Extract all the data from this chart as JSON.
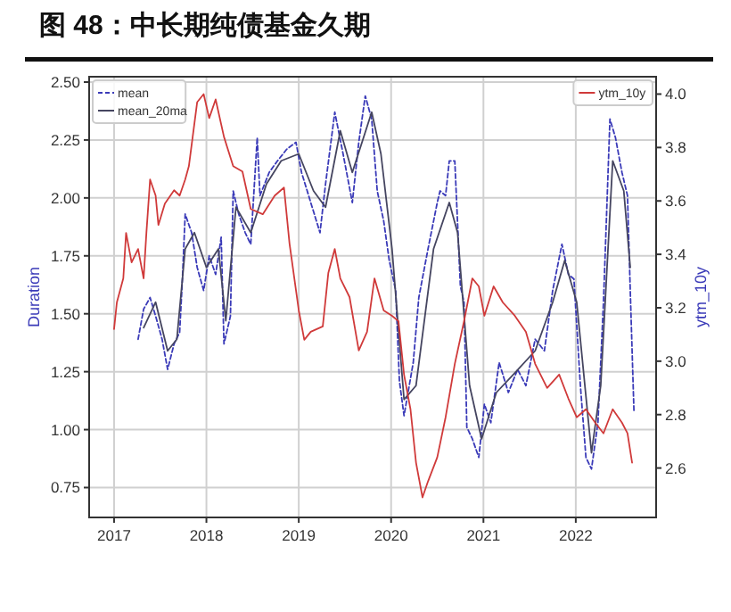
{
  "chart_data": {
    "type": "line",
    "title": "图 48：中长期纯债基金久期",
    "ylabel": "Duration",
    "y2label": "ytm_10y",
    "xlim": [
      2016.73,
      2022.87
    ],
    "xticks": [
      2017,
      2018,
      2019,
      2020,
      2021,
      2022
    ],
    "ylim": [
      0.621,
      2.523
    ],
    "yticks": [
      {
        "value": 0.75,
        "label": "0.75"
      },
      {
        "value": 1.0,
        "label": "1.00"
      },
      {
        "value": 1.25,
        "label": "1.25"
      },
      {
        "value": 1.5,
        "label": "1.50"
      },
      {
        "value": 1.75,
        "label": "1.75"
      },
      {
        "value": 2.0,
        "label": "2.00"
      },
      {
        "value": 2.25,
        "label": "2.25"
      },
      {
        "value": 2.5,
        "label": "2.50"
      }
    ],
    "y2lim": [
      2.415,
      4.065
    ],
    "y2ticks": [
      {
        "value": 2.6,
        "label": "2.6"
      },
      {
        "value": 2.8,
        "label": "2.8"
      },
      {
        "value": 3.0,
        "label": "3.0"
      },
      {
        "value": 3.2,
        "label": "3.2"
      },
      {
        "value": 3.4,
        "label": "3.4"
      },
      {
        "value": 3.6,
        "label": "3.6"
      },
      {
        "value": 3.8,
        "label": "3.8"
      },
      {
        "value": 4.0,
        "label": "4.0"
      }
    ],
    "grid": true,
    "legend": "top left",
    "series": [
      {
        "name": "mean",
        "color": "#3a3ab8",
        "line_style": "dashed",
        "x": [
          2017.26,
          2017.32,
          2017.39,
          2017.45,
          2017.52,
          2017.58,
          2017.65,
          2017.71,
          2017.74,
          2017.77,
          2017.84,
          2017.9,
          2017.97,
          2018.03,
          2018.1,
          2018.16,
          2018.19,
          2018.26,
          2018.29,
          2018.35,
          2018.42,
          2018.48,
          2018.55,
          2018.58,
          2018.68,
          2018.77,
          2018.87,
          2018.97,
          2019.03,
          2019.13,
          2019.23,
          2019.29,
          2019.39,
          2019.48,
          2019.58,
          2019.65,
          2019.72,
          2019.79,
          2019.85,
          2019.92,
          2019.98,
          2020.05,
          2020.09,
          2020.14,
          2020.24,
          2020.3,
          2020.4,
          2020.5,
          2020.53,
          2020.59,
          2020.63,
          2020.69,
          2020.75,
          2020.79,
          2020.82,
          2020.88,
          2020.95,
          2021.01,
          2021.08,
          2021.17,
          2021.27,
          2021.37,
          2021.46,
          2021.56,
          2021.66,
          2021.75,
          2021.85,
          2021.92,
          2021.98,
          2022.05,
          2022.11,
          2022.17,
          2022.24,
          2022.3,
          2022.37,
          2022.43,
          2022.5,
          2022.56,
          2022.59,
          2022.63
        ],
        "values": [
          1.39,
          1.52,
          1.57,
          1.49,
          1.39,
          1.26,
          1.37,
          1.42,
          1.65,
          1.93,
          1.85,
          1.7,
          1.6,
          1.75,
          1.67,
          1.83,
          1.37,
          1.49,
          2.03,
          1.93,
          1.85,
          1.8,
          2.26,
          2.01,
          2.11,
          2.16,
          2.21,
          2.24,
          2.11,
          1.98,
          1.85,
          2.06,
          2.37,
          2.19,
          1.98,
          2.24,
          2.44,
          2.34,
          2.03,
          1.9,
          1.73,
          1.6,
          1.21,
          1.06,
          1.29,
          1.57,
          1.78,
          1.98,
          2.03,
          2.01,
          2.16,
          2.16,
          1.62,
          1.55,
          1.01,
          0.96,
          0.88,
          1.11,
          1.03,
          1.29,
          1.16,
          1.26,
          1.19,
          1.39,
          1.34,
          1.6,
          1.8,
          1.67,
          1.65,
          1.19,
          0.88,
          0.83,
          1.03,
          1.55,
          2.34,
          2.26,
          2.11,
          2.01,
          1.6,
          1.08
        ]
      },
      {
        "name": "mean_20ma",
        "color": "#454560",
        "line_style": "solid",
        "x": [
          2017.32,
          2017.45,
          2017.58,
          2017.68,
          2017.77,
          2017.87,
          2018.0,
          2018.13,
          2018.21,
          2018.32,
          2018.48,
          2018.65,
          2018.81,
          2019.0,
          2019.16,
          2019.29,
          2019.45,
          2019.58,
          2019.79,
          2019.89,
          2020.01,
          2020.14,
          2020.27,
          2020.46,
          2020.63,
          2020.72,
          2020.85,
          2020.98,
          2021.14,
          2021.33,
          2021.56,
          2021.75,
          2021.88,
          2022.01,
          2022.17,
          2022.27,
          2022.4,
          2022.52,
          2022.59
        ],
        "values": [
          1.44,
          1.55,
          1.34,
          1.39,
          1.78,
          1.85,
          1.7,
          1.78,
          1.47,
          1.96,
          1.85,
          2.06,
          2.16,
          2.19,
          2.03,
          1.96,
          2.29,
          2.11,
          2.37,
          2.19,
          1.78,
          1.13,
          1.19,
          1.78,
          1.98,
          1.85,
          1.19,
          0.96,
          1.16,
          1.24,
          1.34,
          1.55,
          1.73,
          1.55,
          0.9,
          1.19,
          2.16,
          2.03,
          1.7
        ]
      },
      {
        "name": "ytm_10y",
        "color": "#d03a3a",
        "line_style": "solid",
        "axis": "y2",
        "x": [
          2017.0,
          2017.03,
          2017.1,
          2017.13,
          2017.19,
          2017.26,
          2017.32,
          2017.35,
          2017.39,
          2017.45,
          2017.48,
          2017.55,
          2017.65,
          2017.71,
          2017.77,
          2017.81,
          2017.9,
          2017.97,
          2018.03,
          2018.1,
          2018.19,
          2018.29,
          2018.39,
          2018.48,
          2018.61,
          2018.74,
          2018.84,
          2018.9,
          2019.0,
          2019.06,
          2019.13,
          2019.26,
          2019.32,
          2019.39,
          2019.45,
          2019.55,
          2019.65,
          2019.74,
          2019.82,
          2019.92,
          2020.01,
          2020.08,
          2020.14,
          2020.21,
          2020.27,
          2020.34,
          2020.4,
          2020.5,
          2020.59,
          2020.69,
          2020.79,
          2020.88,
          2020.95,
          2021.01,
          2021.11,
          2021.21,
          2021.34,
          2021.46,
          2021.56,
          2021.69,
          2021.82,
          2021.92,
          2022.01,
          2022.11,
          2022.21,
          2022.3,
          2022.4,
          2022.5,
          2022.56,
          2022.61
        ],
        "values": [
          3.12,
          3.22,
          3.31,
          3.48,
          3.37,
          3.42,
          3.31,
          3.48,
          3.68,
          3.62,
          3.51,
          3.59,
          3.64,
          3.62,
          3.68,
          3.73,
          3.97,
          4.0,
          3.91,
          3.98,
          3.84,
          3.73,
          3.71,
          3.57,
          3.55,
          3.62,
          3.65,
          3.44,
          3.19,
          3.08,
          3.11,
          3.13,
          3.33,
          3.42,
          3.31,
          3.24,
          3.04,
          3.11,
          3.31,
          3.19,
          3.17,
          3.15,
          2.95,
          2.82,
          2.62,
          2.49,
          2.55,
          2.64,
          2.79,
          2.99,
          3.15,
          3.31,
          3.28,
          3.17,
          3.28,
          3.22,
          3.17,
          3.11,
          2.99,
          2.9,
          2.95,
          2.86,
          2.79,
          2.82,
          2.77,
          2.73,
          2.82,
          2.77,
          2.73,
          2.62
        ]
      }
    ]
  }
}
